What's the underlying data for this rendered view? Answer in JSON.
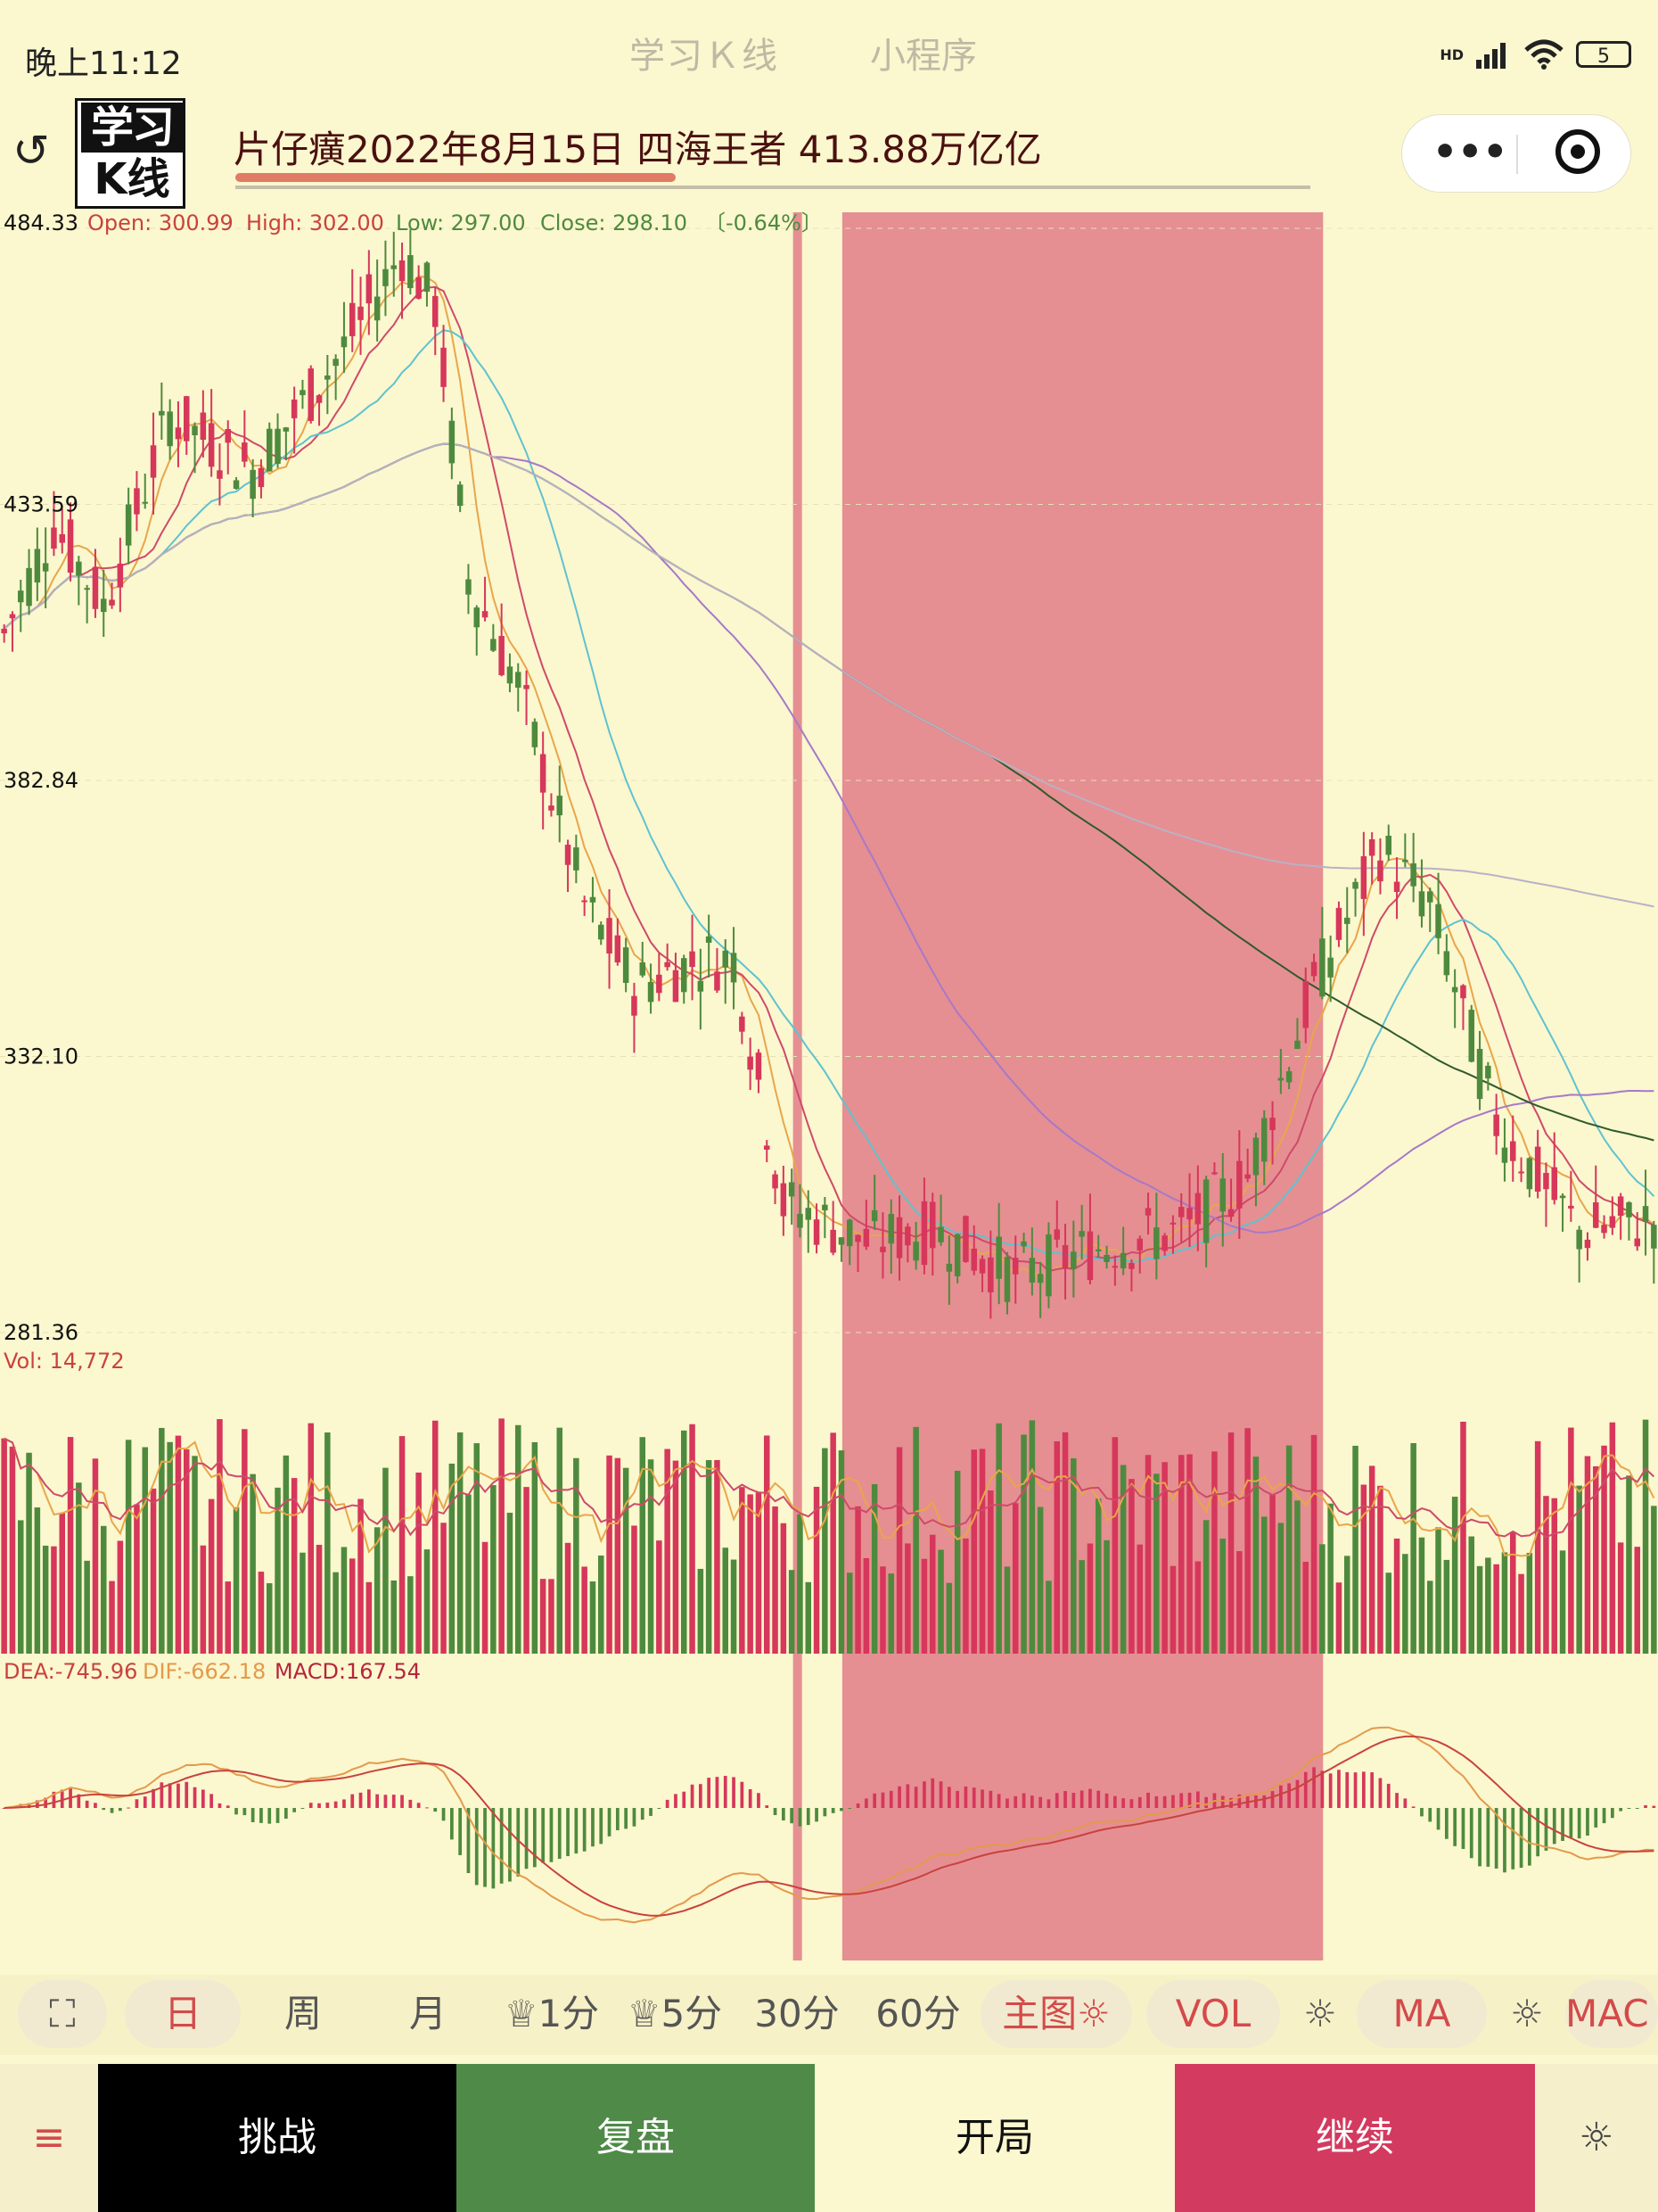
{
  "status_bar": {
    "time": "晚上11:12",
    "app_title": "学习Ｋ线",
    "app_subtitle": "小程序",
    "network_label": "HD",
    "battery": "5"
  },
  "header": {
    "logo_top": "学习",
    "logo_bottom": "K线",
    "title": "片仔癀2022年8月15日 四海王者 413.88万亿亿",
    "progress_fraction": 0.41
  },
  "colors": {
    "background": "#fbf7cf",
    "up": "#d6375a",
    "down": "#4e8a3e",
    "highlight": "#e58f92",
    "accent": "#d44a4a"
  },
  "chart_data": {
    "type": "candlestick",
    "price_axis_labels": [
      "484.33",
      "433.59",
      "382.84",
      "332.10",
      "281.36"
    ],
    "ohlc_label": {
      "open": "Open: 300.99",
      "high": "High: 302.00",
      "low": "Low: 297.00",
      "close": "Close: 298.10",
      "change": "〔-0.64%〕"
    },
    "volume_label": "Vol: 14,772",
    "macd_label": {
      "dea": "DEA:-745.96",
      "dif": "DIF:-662.18",
      "macd": "MACD:167.54"
    },
    "ylim": [
      281.36,
      484.33
    ],
    "highlight_range_fraction": [
      0.508,
      0.798
    ],
    "marker_fraction": 0.481
  },
  "toolbar": {
    "items": [
      {
        "label": "日",
        "name": "period-day"
      },
      {
        "label": "周",
        "name": "period-week"
      },
      {
        "label": "月",
        "name": "period-month"
      },
      {
        "label": "♕1分",
        "name": "period-1min"
      },
      {
        "label": "♕5分",
        "name": "period-5min"
      },
      {
        "label": "30分",
        "name": "period-30min"
      },
      {
        "label": "60分",
        "name": "period-60min"
      },
      {
        "label": "主图☼",
        "name": "main-chart-settings"
      },
      {
        "label": "VOL",
        "name": "indicator-vol"
      },
      {
        "label": "☼",
        "name": "vol-settings"
      },
      {
        "label": "MA",
        "name": "indicator-ma"
      },
      {
        "label": "☼",
        "name": "ma-settings"
      },
      {
        "label": "MAC",
        "name": "indicator-macd"
      }
    ],
    "fullscreen_icon": "⛶"
  },
  "bottom_bar": {
    "menu_icon": "≡",
    "challenge": "挑战",
    "review": "复盘",
    "start": "开局",
    "continue": "继续",
    "settings_icon": "☼"
  }
}
